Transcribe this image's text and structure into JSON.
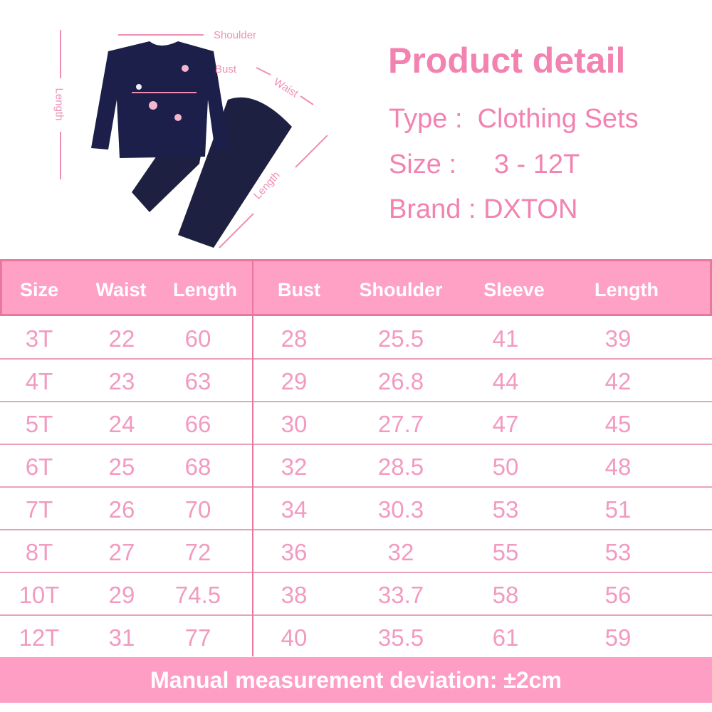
{
  "diagram": {
    "labels": {
      "shoulder": "Shoulder",
      "bust": "Bust",
      "waist": "Waist",
      "top_length": "Length",
      "pants_length": "Length"
    }
  },
  "product": {
    "title": "Product detail",
    "type": "Type :  Clothing Sets",
    "size": "Size :     3 - 12T",
    "brand": "Brand : DXTON"
  },
  "table": {
    "headers": [
      "Size",
      "Waist",
      "Length",
      "Bust",
      "Shoulder",
      "Sleeve",
      "Length"
    ],
    "rows": [
      [
        "3T",
        "22",
        "60",
        "28",
        "25.5",
        "41",
        "39"
      ],
      [
        "4T",
        "23",
        "63",
        "29",
        "26.8",
        "44",
        "42"
      ],
      [
        "5T",
        "24",
        "66",
        "30",
        "27.7",
        "47",
        "45"
      ],
      [
        "6T",
        "25",
        "68",
        "32",
        "28.5",
        "50",
        "48"
      ],
      [
        "7T",
        "26",
        "70",
        "34",
        "30.3",
        "53",
        "51"
      ],
      [
        "8T",
        "27",
        "72",
        "36",
        "32",
        "55",
        "53"
      ],
      [
        "10T",
        "29",
        "74.5",
        "38",
        "33.7",
        "58",
        "56"
      ],
      [
        "12T",
        "31",
        "77",
        "40",
        "35.5",
        "61",
        "59"
      ]
    ]
  },
  "footer": "Manual measurement deviation: ±2cm",
  "colors": {
    "accent": "#f283b0",
    "header_bg": "#ffa0c5",
    "navy": "#1b1f4a"
  }
}
